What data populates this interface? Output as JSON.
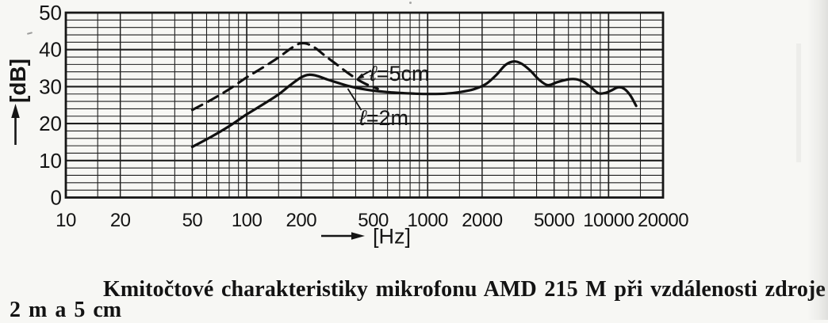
{
  "figure": {
    "caption_line1": "Kmitočtové charakteristiky mikrofonu AMD 215 M při vzdálenosti zdroje",
    "caption_line2": "2 m a 5 cm"
  },
  "chart": {
    "y_unit": "[dB]",
    "x_unit": "[Hz]",
    "curve_labels": [
      {
        "lead": "ℓ",
        "rest": "=5cm"
      },
      {
        "lead": "ℓ",
        "rest": "=2m"
      }
    ]
  },
  "chart_data": {
    "type": "line",
    "title": "",
    "xlabel": "[Hz]",
    "ylabel": "[dB]",
    "x_scale": "log",
    "xlim": [
      10,
      20000
    ],
    "ylim": [
      0,
      50
    ],
    "x_ticks": [
      10,
      20,
      50,
      100,
      200,
      500,
      1000,
      2000,
      5000,
      10000,
      20000
    ],
    "y_ticks": [
      0,
      10,
      20,
      30,
      40,
      50
    ],
    "grid": "log graph paper, minor x lines at 1,1.5,2..9 per decade, minor y lines every 2 dB",
    "legend_position": "inline labels with leader lines",
    "series": [
      {
        "name": "l=5cm",
        "line": "dashed",
        "points": [
          [
            50,
            23.7
          ],
          [
            63,
            26.3
          ],
          [
            80,
            29.3
          ],
          [
            100,
            32.5
          ],
          [
            125,
            35.4
          ],
          [
            150,
            37.9
          ],
          [
            175,
            40.3
          ],
          [
            195,
            41.6
          ],
          [
            215,
            41.6
          ],
          [
            240,
            40.4
          ],
          [
            270,
            38.4
          ],
          [
            310,
            36.2
          ],
          [
            360,
            33.8
          ],
          [
            420,
            31.6
          ],
          [
            480,
            30.2
          ],
          [
            530,
            29.4
          ]
        ]
      },
      {
        "name": "l=2m",
        "line": "solid",
        "points": [
          [
            50,
            13.7
          ],
          [
            63,
            16.3
          ],
          [
            80,
            19.3
          ],
          [
            100,
            22.5
          ],
          [
            125,
            25.4
          ],
          [
            150,
            27.9
          ],
          [
            175,
            30.5
          ],
          [
            200,
            32.5
          ],
          [
            220,
            33.2
          ],
          [
            245,
            32.9
          ],
          [
            280,
            31.9
          ],
          [
            320,
            31
          ],
          [
            370,
            30.1
          ],
          [
            430,
            29.4
          ],
          [
            500,
            28.9
          ],
          [
            600,
            28.5
          ],
          [
            700,
            28.3
          ],
          [
            850,
            28.1
          ],
          [
            1000,
            28
          ],
          [
            1250,
            28.1
          ],
          [
            1500,
            28.5
          ],
          [
            1800,
            29.3
          ],
          [
            2100,
            30.7
          ],
          [
            2400,
            33.2
          ],
          [
            2700,
            35.9
          ],
          [
            3000,
            36.8
          ],
          [
            3300,
            36.2
          ],
          [
            3700,
            34.3
          ],
          [
            4100,
            32
          ],
          [
            4600,
            30.4
          ],
          [
            5200,
            31.2
          ],
          [
            5900,
            31.9
          ],
          [
            6600,
            32
          ],
          [
            7300,
            31.2
          ],
          [
            8000,
            29.8
          ],
          [
            8800,
            28.2
          ],
          [
            9600,
            28.3
          ],
          [
            10300,
            28.9
          ],
          [
            11300,
            29.8
          ],
          [
            12200,
            29.4
          ],
          [
            13200,
            27.6
          ],
          [
            14200,
            24.8
          ]
        ]
      }
    ]
  }
}
